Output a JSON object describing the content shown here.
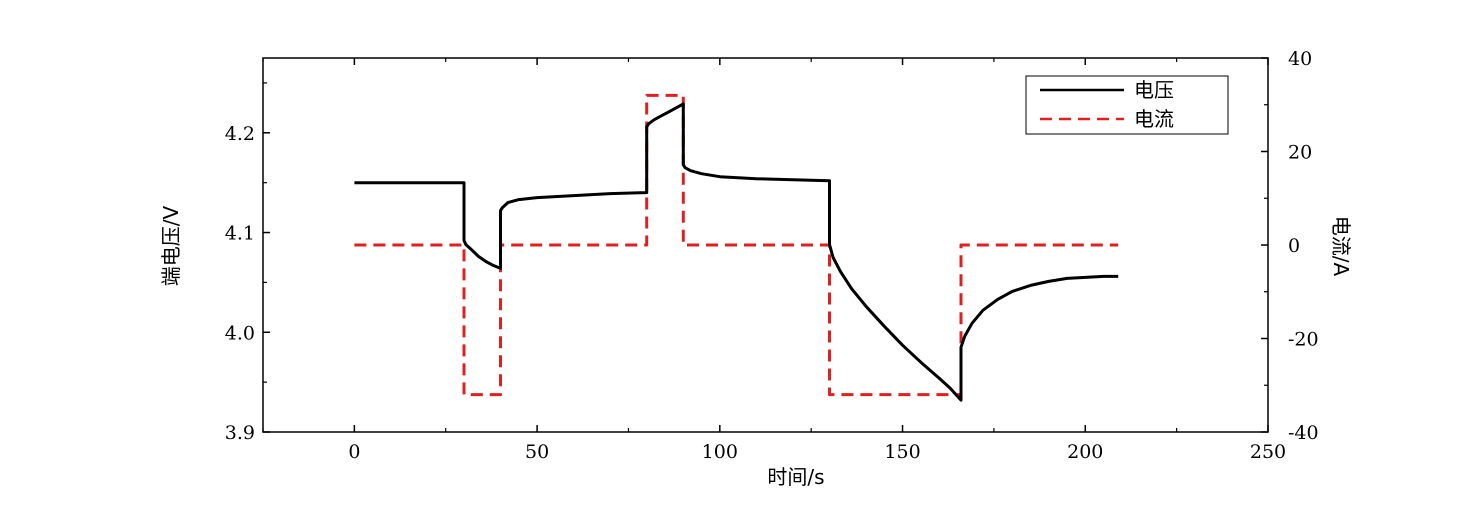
{
  "chart_data": {
    "type": "line",
    "xlabel": "时间/s",
    "ylabel_left": "端电压/V",
    "ylabel_right": "电流/A",
    "xlim": [
      -25,
      250
    ],
    "ylim_left": [
      3.9,
      4.275
    ],
    "ylim_right": [
      -40,
      40
    ],
    "x_ticks": [
      0,
      50,
      100,
      150,
      200,
      250
    ],
    "y_left_ticks": [
      3.9,
      4.0,
      4.1,
      4.2
    ],
    "y_right_ticks": [
      -40,
      -20,
      0,
      20,
      40
    ],
    "x_tick_labels": [
      "0",
      "50",
      "100",
      "150",
      "200",
      "250"
    ],
    "y_left_tick_labels": [
      "3.9",
      "4.0",
      "4.1",
      "4.2"
    ],
    "y_right_tick_labels": [
      "-40",
      "-20",
      "0",
      "20",
      "40"
    ],
    "legend_position": "top-right",
    "grid": false,
    "series": [
      {
        "name": "电压",
        "axis": "left",
        "color": "#000000",
        "style": "solid",
        "x": [
          0,
          30,
          30,
          30.5,
          32,
          34,
          36,
          38,
          40,
          40,
          40.5,
          42,
          45,
          50,
          60,
          70,
          80,
          80,
          80.5,
          82,
          84,
          86,
          88,
          90,
          90,
          90.5,
          92,
          95,
          100,
          110,
          120,
          130,
          130,
          131,
          133,
          136,
          140,
          145,
          150,
          155,
          160,
          163,
          166,
          166,
          167,
          169,
          172,
          176,
          180,
          185,
          190,
          195,
          200,
          205,
          209
        ],
        "y": [
          4.15,
          4.15,
          4.092,
          4.088,
          4.083,
          4.076,
          4.071,
          4.067,
          4.064,
          4.122,
          4.125,
          4.13,
          4.133,
          4.135,
          4.137,
          4.139,
          4.14,
          4.206,
          4.209,
          4.213,
          4.217,
          4.221,
          4.225,
          4.229,
          4.168,
          4.165,
          4.162,
          4.159,
          4.156,
          4.154,
          4.153,
          4.152,
          4.088,
          4.075,
          4.061,
          4.044,
          4.026,
          4.006,
          3.987,
          3.97,
          3.954,
          3.944,
          3.932,
          3.985,
          3.996,
          4.009,
          4.022,
          4.033,
          4.041,
          4.047,
          4.051,
          4.054,
          4.055,
          4.056,
          4.056
        ]
      },
      {
        "name": "电流",
        "axis": "right",
        "color": "#e02020",
        "style": "dashed",
        "x": [
          0,
          30,
          30,
          40,
          40,
          80,
          80,
          90,
          90,
          130,
          130,
          166,
          166,
          209
        ],
        "y": [
          0,
          0,
          -32,
          -32,
          0,
          0,
          32,
          32,
          0,
          0,
          -32,
          -32,
          0,
          0
        ]
      }
    ]
  }
}
